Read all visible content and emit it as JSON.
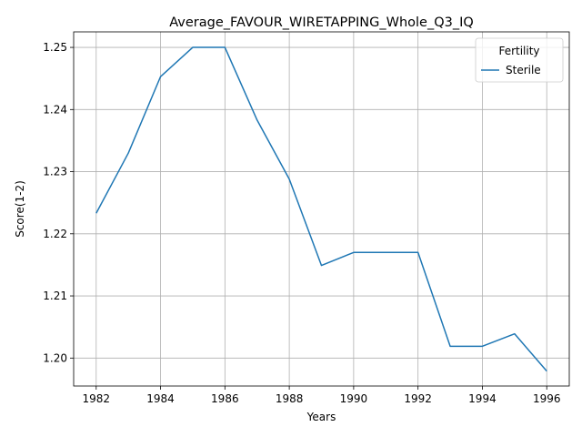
{
  "chart_data": {
    "type": "line",
    "title": "Average_FAVOUR_WIRETAPPING_Whole_Q3_IQ",
    "xlabel": "Years",
    "ylabel": "Score(1-2)",
    "xlim": [
      1981.3,
      1996.7
    ],
    "ylim": [
      1.1955,
      1.2525
    ],
    "xticks": [
      1982,
      1984,
      1986,
      1988,
      1990,
      1992,
      1994,
      1996
    ],
    "xtick_labels": [
      "1982",
      "1984",
      "1986",
      "1988",
      "1990",
      "1992",
      "1994",
      "1996"
    ],
    "yticks": [
      1.2,
      1.21,
      1.22,
      1.23,
      1.24,
      1.25
    ],
    "ytick_labels": [
      "1.20",
      "1.21",
      "1.22",
      "1.23",
      "1.24",
      "1.25"
    ],
    "grid": true,
    "legend": {
      "title": "Fertility",
      "placement": "top-right"
    },
    "series": [
      {
        "name": "Sterile",
        "color": "#1f77b4",
        "x": [
          1982,
          1983,
          1984,
          1985,
          1986,
          1987,
          1988,
          1989,
          1990,
          1991,
          1992,
          1993,
          1994,
          1995,
          1996
        ],
        "y": [
          1.2233,
          1.233,
          1.2453,
          1.25,
          1.25,
          1.2383,
          1.2288,
          1.2149,
          1.217,
          1.217,
          1.217,
          1.2019,
          1.2019,
          1.2039,
          1.1979
        ]
      }
    ]
  }
}
